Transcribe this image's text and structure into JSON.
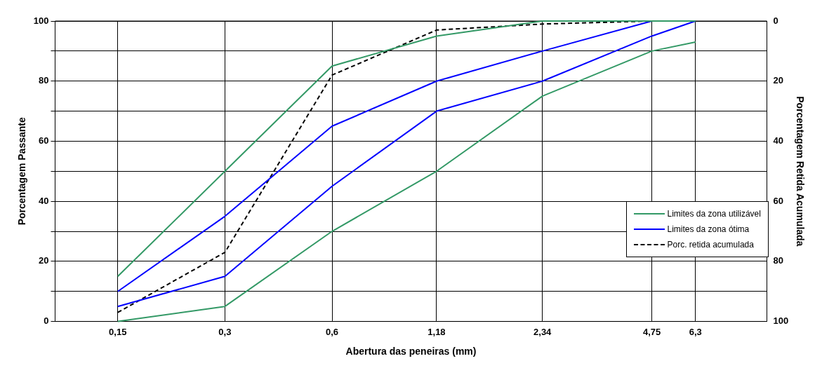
{
  "chart_data": {
    "type": "line",
    "xlabel": "Abertura das peneiras (mm)",
    "ylabel": "Porcentagem Passante",
    "y2label": "Porcentagem Retida Acumulada",
    "log": "x",
    "xlim": [
      0.1,
      10
    ],
    "xticks": [
      {
        "value": 0.15,
        "label": "0,15"
      },
      {
        "value": 0.3,
        "label": "0,3"
      },
      {
        "value": 0.6,
        "label": "0,6"
      },
      {
        "value": 1.18,
        "label": "1,18"
      },
      {
        "value": 2.34,
        "label": "2,34"
      },
      {
        "value": 4.75,
        "label": "4,75"
      },
      {
        "value": 6.3,
        "label": "6,3"
      }
    ],
    "x": [
      0.15,
      0.3,
      0.6,
      1.18,
      2.34,
      4.75,
      6.3
    ],
    "ylim": [
      0,
      100
    ],
    "yticks": [
      0,
      {
        "value": 10,
        "label": null
      },
      20,
      {
        "value": 30,
        "label": null
      },
      40,
      {
        "value": 50,
        "label": null
      },
      60,
      {
        "value": 70,
        "label": null
      },
      80,
      {
        "value": 90,
        "label": null
      },
      100
    ],
    "y2lim": [
      100,
      0
    ],
    "y2ticks": [
      0,
      20,
      40,
      60,
      80,
      100
    ],
    "grid": true,
    "legend": "right",
    "marker": "none",
    "series": [
      {
        "name": "Limites da zona utilizável",
        "color": "#339966",
        "values": [
          15,
          50,
          85,
          95,
          100,
          100,
          100
        ]
      },
      {
        "color": "#339966",
        "values": [
          0,
          5,
          30,
          50,
          75,
          90,
          93
        ]
      },
      {
        "name": "Limites da zona ótima",
        "color": "#0000ff",
        "values": [
          10,
          35,
          65,
          80,
          90,
          100,
          100
        ]
      },
      {
        "color": "#0000ff",
        "values": [
          5,
          15,
          45,
          70,
          80,
          95,
          100
        ]
      },
      {
        "name": "Porc. retida acumulada",
        "color": "#000000",
        "axis": "y2",
        "line_style": "dashed",
        "values": [
          97,
          77,
          18,
          3,
          1,
          0,
          null
        ]
      }
    ]
  }
}
